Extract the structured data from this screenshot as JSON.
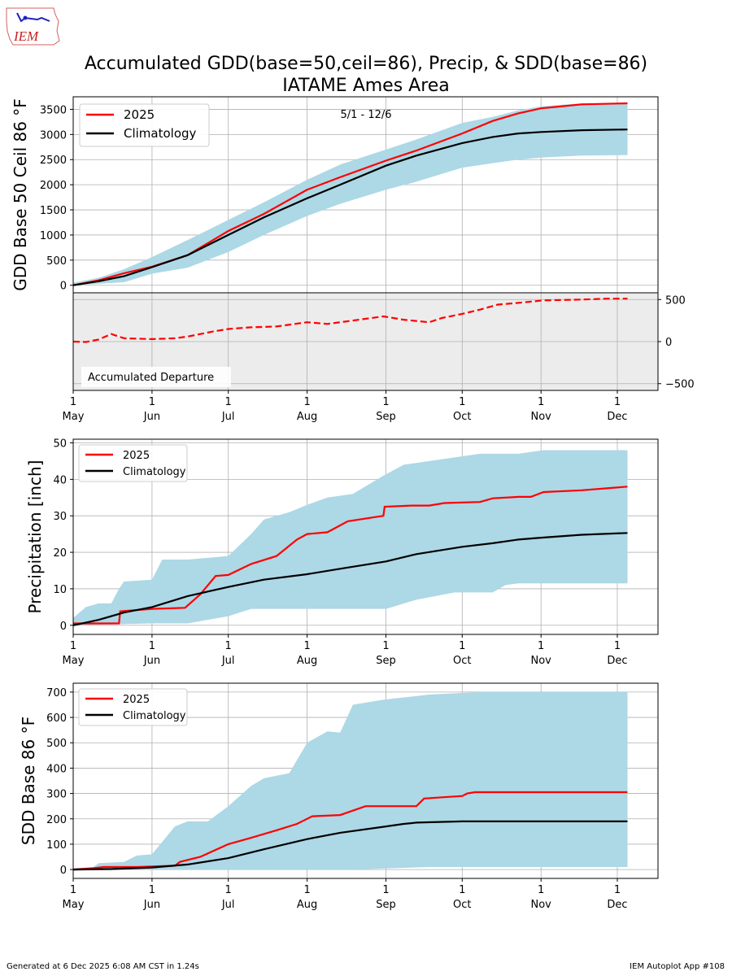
{
  "logo": {
    "text": "IEM"
  },
  "title_line1": "Accumulated GDD(base=50,ceil=86), Precip, & SDD(base=86)",
  "title_line2": "IATAME Ames Area",
  "date_range": "5/1 - 12/6",
  "month_ticks": [
    {
      "day": "1",
      "month": "May"
    },
    {
      "day": "1",
      "month": "Jun"
    },
    {
      "day": "1",
      "month": "Jul"
    },
    {
      "day": "1",
      "month": "Aug"
    },
    {
      "day": "1",
      "month": "Sep"
    },
    {
      "day": "1",
      "month": "Oct"
    },
    {
      "day": "1",
      "month": "Nov"
    },
    {
      "day": "1",
      "month": "Dec"
    }
  ],
  "footer": {
    "generated": "Generated at 6 Dec 2025 6:08 AM CST in 1.24s",
    "app": "IEM Autoplot App #108"
  },
  "colors": {
    "current": "#ff0000",
    "climatology": "#000000",
    "range": "#add8e6",
    "departure_bg": "#ececec",
    "grid": "#b0b0b0"
  },
  "chart_data": [
    {
      "id": "gdd",
      "type": "line",
      "ylabel": "GDD Base 50 Ceil 86 °F",
      "ylim": [
        -150,
        3750
      ],
      "yticks": [
        0,
        500,
        1000,
        1500,
        2000,
        2500,
        3000,
        3500
      ],
      "x_day_range": [
        0,
        220
      ],
      "legend": [
        "2025",
        "Climatology"
      ],
      "series": [
        {
          "name": "2025",
          "points": [
            [
              0,
              0
            ],
            [
              10,
              100
            ],
            [
              20,
              240
            ],
            [
              31,
              370
            ],
            [
              45,
              600
            ],
            [
              61,
              1080
            ],
            [
              75,
              1420
            ],
            [
              92,
              1900
            ],
            [
              105,
              2150
            ],
            [
              123,
              2480
            ],
            [
              135,
              2680
            ],
            [
              153,
              3020
            ],
            [
              165,
              3270
            ],
            [
              175,
              3420
            ],
            [
              184,
              3520
            ],
            [
              190,
              3550
            ],
            [
              200,
              3600
            ],
            [
              218,
              3620
            ]
          ]
        },
        {
          "name": "Climatology",
          "points": [
            [
              0,
              0
            ],
            [
              10,
              80
            ],
            [
              20,
              180
            ],
            [
              31,
              360
            ],
            [
              45,
              600
            ],
            [
              61,
              1000
            ],
            [
              75,
              1350
            ],
            [
              92,
              1730
            ],
            [
              105,
              2000
            ],
            [
              123,
              2380
            ],
            [
              135,
              2580
            ],
            [
              153,
              2830
            ],
            [
              165,
              2950
            ],
            [
              175,
              3020
            ],
            [
              184,
              3050
            ],
            [
              200,
              3085
            ],
            [
              218,
              3100
            ]
          ]
        }
      ],
      "range": {
        "upper": [
          [
            0,
            50
          ],
          [
            10,
            150
          ],
          [
            20,
            320
          ],
          [
            31,
            560
          ],
          [
            45,
            900
          ],
          [
            61,
            1300
          ],
          [
            75,
            1650
          ],
          [
            92,
            2100
          ],
          [
            105,
            2400
          ],
          [
            123,
            2700
          ],
          [
            135,
            2900
          ],
          [
            153,
            3230
          ],
          [
            165,
            3350
          ],
          [
            175,
            3480
          ],
          [
            184,
            3560
          ],
          [
            200,
            3620
          ],
          [
            218,
            3620
          ]
        ],
        "lower": [
          [
            0,
            0
          ],
          [
            10,
            30
          ],
          [
            20,
            60
          ],
          [
            31,
            230
          ],
          [
            45,
            350
          ],
          [
            61,
            660
          ],
          [
            75,
            1000
          ],
          [
            92,
            1380
          ],
          [
            105,
            1620
          ],
          [
            123,
            1900
          ],
          [
            135,
            2060
          ],
          [
            153,
            2340
          ],
          [
            165,
            2430
          ],
          [
            175,
            2500
          ],
          [
            184,
            2540
          ],
          [
            200,
            2580
          ],
          [
            218,
            2590
          ]
        ]
      }
    },
    {
      "id": "departure",
      "type": "line",
      "label": "Accumulated Departure",
      "ylim": [
        -580,
        580
      ],
      "yticks": [
        -500,
        0,
        500
      ],
      "series": [
        {
          "name": "Departure",
          "points": [
            [
              0,
              0
            ],
            [
              5,
              -5
            ],
            [
              10,
              25
            ],
            [
              15,
              90
            ],
            [
              20,
              40
            ],
            [
              31,
              30
            ],
            [
              40,
              40
            ],
            [
              45,
              60
            ],
            [
              55,
              120
            ],
            [
              61,
              150
            ],
            [
              70,
              170
            ],
            [
              80,
              180
            ],
            [
              92,
              230
            ],
            [
              100,
              210
            ],
            [
              110,
              250
            ],
            [
              122,
              300
            ],
            [
              130,
              260
            ],
            [
              140,
              230
            ],
            [
              145,
              280
            ],
            [
              153,
              330
            ],
            [
              160,
              380
            ],
            [
              167,
              440
            ],
            [
              175,
              460
            ],
            [
              185,
              490
            ],
            [
              200,
              500
            ],
            [
              210,
              510
            ],
            [
              218,
              510
            ]
          ]
        }
      ]
    },
    {
      "id": "precip",
      "type": "line",
      "ylabel": "Precipitation [inch]",
      "ylim": [
        -2.5,
        51
      ],
      "yticks": [
        0,
        10,
        20,
        30,
        40,
        50
      ],
      "legend": [
        "2025",
        "Climatology"
      ],
      "series": [
        {
          "name": "2025",
          "points": [
            [
              0,
              0.5
            ],
            [
              18,
              0.5
            ],
            [
              18.5,
              3.8
            ],
            [
              31,
              4.5
            ],
            [
              44,
              4.8
            ],
            [
              50,
              8.5
            ],
            [
              56,
              13.5
            ],
            [
              61,
              13.8
            ],
            [
              70,
              16.8
            ],
            [
              80,
              19
            ],
            [
              88,
              23.5
            ],
            [
              92,
              25
            ],
            [
              100,
              25.5
            ],
            [
              108,
              28.5
            ],
            [
              122,
              30
            ],
            [
              122.5,
              32.5
            ],
            [
              133,
              32.8
            ],
            [
              140,
              32.8
            ],
            [
              146,
              33.5
            ],
            [
              160,
              33.8
            ],
            [
              165,
              34.8
            ],
            [
              175,
              35.2
            ],
            [
              180,
              35.2
            ],
            [
              185,
              36.5
            ],
            [
              200,
              37
            ],
            [
              218,
              38
            ]
          ]
        },
        {
          "name": "Climatology",
          "points": [
            [
              0,
              0
            ],
            [
              10,
              1.5
            ],
            [
              20,
              3.5
            ],
            [
              31,
              5
            ],
            [
              45,
              8
            ],
            [
              61,
              10.5
            ],
            [
              75,
              12.5
            ],
            [
              92,
              14
            ],
            [
              105,
              15.5
            ],
            [
              123,
              17.5
            ],
            [
              135,
              19.5
            ],
            [
              153,
              21.5
            ],
            [
              165,
              22.5
            ],
            [
              175,
              23.5
            ],
            [
              184,
              24
            ],
            [
              200,
              24.8
            ],
            [
              218,
              25.3
            ]
          ]
        }
      ],
      "range": {
        "upper": [
          [
            0,
            2
          ],
          [
            5,
            5
          ],
          [
            10,
            6
          ],
          [
            15,
            6
          ],
          [
            18,
            10
          ],
          [
            20,
            12
          ],
          [
            31,
            12.5
          ],
          [
            35,
            18
          ],
          [
            45,
            18
          ],
          [
            61,
            19
          ],
          [
            70,
            25
          ],
          [
            75,
            29
          ],
          [
            85,
            31
          ],
          [
            92,
            33
          ],
          [
            100,
            35
          ],
          [
            110,
            36
          ],
          [
            122,
            41
          ],
          [
            130,
            44
          ],
          [
            140,
            45
          ],
          [
            150,
            46
          ],
          [
            160,
            47
          ],
          [
            175,
            47
          ],
          [
            185,
            48
          ],
          [
            200,
            48
          ],
          [
            218,
            48
          ]
        ],
        "lower": [
          [
            0,
            0
          ],
          [
            31,
            0.5
          ],
          [
            45,
            0.5
          ],
          [
            61,
            2.5
          ],
          [
            70,
            4.5
          ],
          [
            92,
            4.5
          ],
          [
            123,
            4.5
          ],
          [
            135,
            7
          ],
          [
            150,
            9
          ],
          [
            165,
            9
          ],
          [
            170,
            11
          ],
          [
            175,
            11.5
          ],
          [
            218,
            11.5
          ]
        ]
      }
    },
    {
      "id": "sdd",
      "type": "line",
      "ylabel": "SDD Base 86 °F",
      "ylim": [
        -35,
        735
      ],
      "yticks": [
        0,
        100,
        200,
        300,
        400,
        500,
        600,
        700
      ],
      "legend": [
        "2025",
        "Climatology"
      ],
      "series": [
        {
          "name": "2025",
          "points": [
            [
              0,
              0
            ],
            [
              8,
              5
            ],
            [
              12,
              10
            ],
            [
              25,
              10
            ],
            [
              31,
              12
            ],
            [
              40,
              15
            ],
            [
              42,
              30
            ],
            [
              50,
              50
            ],
            [
              61,
              100
            ],
            [
              70,
              125
            ],
            [
              80,
              155
            ],
            [
              88,
              180
            ],
            [
              94,
              210
            ],
            [
              105,
              215
            ],
            [
              115,
              250
            ],
            [
              122,
              250
            ],
            [
              131,
              250
            ],
            [
              135,
              250
            ],
            [
              138,
              280
            ],
            [
              145,
              285
            ],
            [
              153,
              290
            ],
            [
              155,
              300
            ],
            [
              158,
              305
            ],
            [
              218,
              305
            ]
          ]
        },
        {
          "name": "Climatology",
          "points": [
            [
              0,
              0
            ],
            [
              15,
              2
            ],
            [
              31,
              8
            ],
            [
              45,
              20
            ],
            [
              61,
              45
            ],
            [
              75,
              80
            ],
            [
              92,
              120
            ],
            [
              105,
              145
            ],
            [
              123,
              170
            ],
            [
              130,
              180
            ],
            [
              135,
              185
            ],
            [
              153,
              190
            ],
            [
              165,
              190
            ],
            [
              218,
              190
            ]
          ]
        }
      ],
      "range": {
        "upper": [
          [
            0,
            5
          ],
          [
            8,
            10
          ],
          [
            10,
            25
          ],
          [
            20,
            30
          ],
          [
            25,
            55
          ],
          [
            31,
            60
          ],
          [
            40,
            170
          ],
          [
            45,
            190
          ],
          [
            53,
            190
          ],
          [
            61,
            250
          ],
          [
            70,
            330
          ],
          [
            75,
            360
          ],
          [
            85,
            380
          ],
          [
            92,
            500
          ],
          [
            100,
            545
          ],
          [
            105,
            540
          ],
          [
            110,
            650
          ],
          [
            122,
            670
          ],
          [
            140,
            690
          ],
          [
            160,
            700
          ],
          [
            218,
            700
          ]
        ],
        "lower": [
          [
            0,
            0
          ],
          [
            31,
            0
          ],
          [
            92,
            0
          ],
          [
            110,
            0
          ],
          [
            140,
            10
          ],
          [
            218,
            10
          ]
        ]
      }
    }
  ]
}
